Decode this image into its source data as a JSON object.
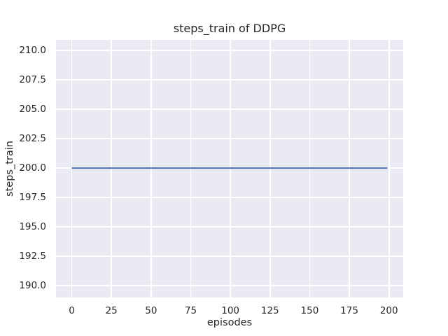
{
  "chart_data": {
    "type": "line",
    "title": "steps_train of DDPG",
    "xlabel": "episodes",
    "ylabel": "steps_train",
    "series": [
      {
        "name": "steps_train",
        "x": [
          0,
          199
        ],
        "y": [
          200,
          200
        ],
        "color": "#4c72b0",
        "line_width": 2
      }
    ],
    "x_ticks": [
      0,
      25,
      50,
      75,
      100,
      125,
      150,
      175,
      200
    ],
    "y_ticks": [
      190.0,
      192.5,
      195.0,
      197.5,
      200.0,
      202.5,
      205.0,
      207.5,
      210.0
    ],
    "y_tick_decimals": 1,
    "xlim": [
      -9.95,
      208.95
    ],
    "ylim": [
      189.0,
      210.9
    ],
    "grid": true,
    "legend": false,
    "style": {
      "plot_background": "#eaeaf2",
      "grid_color": "#ffffff",
      "text_color": "#262626",
      "figure_background": "#ffffff"
    }
  }
}
